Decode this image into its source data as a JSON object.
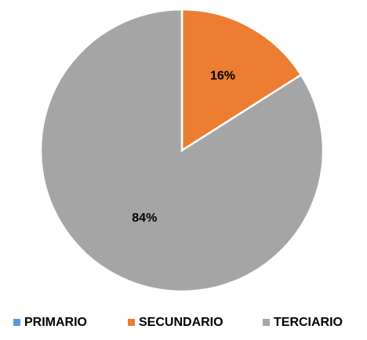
{
  "chart_data": {
    "type": "pie",
    "categories": [
      "PRIMARIO",
      "SECUNDARIO",
      "TERCIARIO"
    ],
    "values": [
      0,
      16,
      84
    ],
    "value_labels": [
      null,
      "16%",
      "84%"
    ],
    "colors": [
      "#5b9bd5",
      "#ed7d31",
      "#a5a5a5"
    ],
    "legend": "bottom"
  }
}
